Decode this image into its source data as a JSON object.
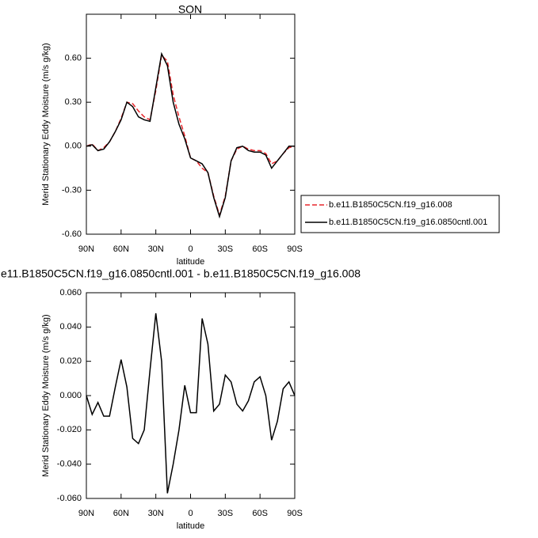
{
  "chart_data": [
    {
      "type": "line",
      "title": "SON",
      "xlabel": "latitude",
      "ylabel": "Merid Stationary Eddy Moisture (m/s g/kg)",
      "x": [
        90,
        85,
        80,
        75,
        70,
        65,
        60,
        55,
        50,
        45,
        40,
        35,
        30,
        25,
        20,
        15,
        10,
        5,
        0,
        -5,
        -10,
        -15,
        -20,
        -25,
        -30,
        -35,
        -40,
        -45,
        -50,
        -55,
        -60,
        -65,
        -70,
        -75,
        -80,
        -85,
        -90
      ],
      "series": [
        {
          "name": "b.e11.B1850C5CN.f19_g16.008",
          "color": "#e8262b",
          "dash": true,
          "values": [
            0.0,
            0.015,
            -0.03,
            -0.01,
            0.03,
            0.1,
            0.19,
            0.3,
            0.29,
            0.24,
            0.2,
            0.18,
            0.38,
            0.62,
            0.58,
            0.35,
            0.2,
            0.07,
            -0.08,
            -0.1,
            -0.15,
            -0.18,
            -0.34,
            -0.47,
            -0.34,
            -0.1,
            -0.02,
            0.0,
            -0.02,
            -0.03,
            -0.03,
            -0.05,
            -0.12,
            -0.1,
            -0.05,
            -0.01,
            0.0
          ]
        },
        {
          "name": "b.e11.B1850C5CN.f19_g16.0850cntl.001",
          "color": "#000000",
          "dash": false,
          "values": [
            0.0,
            0.01,
            -0.03,
            -0.02,
            0.03,
            0.1,
            0.18,
            0.3,
            0.27,
            0.2,
            0.18,
            0.17,
            0.4,
            0.63,
            0.55,
            0.3,
            0.15,
            0.05,
            -0.08,
            -0.1,
            -0.12,
            -0.18,
            -0.35,
            -0.48,
            -0.35,
            -0.1,
            -0.01,
            0.0,
            -0.03,
            -0.04,
            -0.04,
            -0.06,
            -0.15,
            -0.1,
            -0.05,
            0.0,
            0.0
          ]
        }
      ],
      "xlim": [
        90,
        -90
      ],
      "xticks": [
        {
          "value": 90,
          "label": "90N"
        },
        {
          "value": 60,
          "label": "60N"
        },
        {
          "value": 30,
          "label": "30N"
        },
        0,
        {
          "value": -30,
          "label": "30S"
        },
        {
          "value": -60,
          "label": "60S"
        },
        {
          "value": -90,
          "label": "90S"
        }
      ],
      "ylim": [
        -0.6,
        0.9
      ],
      "yticks": [
        {
          "value": -0.6,
          "label": "-0.60"
        },
        {
          "value": -0.3,
          "label": "-0.30"
        },
        {
          "value": 0,
          "label": "0.00"
        },
        {
          "value": 0.3,
          "label": "0.30"
        },
        {
          "value": 0.6,
          "label": "0.60"
        }
      ],
      "legend": "right"
    },
    {
      "type": "line",
      "title": "e11.B1850C5CN.f19_g16.0850cntl.001 - b.e11.B1850C5CN.f19_g16.008",
      "xlabel": "latitude",
      "ylabel": "Merid Stationary Eddy Moisture (m/s g/kg)",
      "x": [
        90,
        85,
        80,
        75,
        70,
        65,
        60,
        55,
        50,
        45,
        40,
        35,
        30,
        25,
        20,
        15,
        10,
        5,
        0,
        -5,
        -10,
        -15,
        -20,
        -25,
        -30,
        -35,
        -40,
        -45,
        -50,
        -55,
        -60,
        -65,
        -70,
        -75,
        -80,
        -85,
        -90
      ],
      "series": [
        {
          "color": "#000000",
          "dash": false,
          "values": [
            0.0,
            -0.011,
            -0.004,
            -0.012,
            -0.012,
            0.005,
            0.021,
            0.005,
            -0.025,
            -0.028,
            -0.02,
            0.015,
            0.048,
            0.02,
            -0.057,
            -0.04,
            -0.02,
            0.006,
            -0.01,
            -0.01,
            0.045,
            0.03,
            -0.009,
            -0.005,
            0.012,
            0.008,
            -0.005,
            -0.009,
            -0.003,
            0.008,
            0.011,
            0.0,
            -0.026,
            -0.015,
            0.004,
            0.008,
            0.0
          ]
        }
      ],
      "xlim": [
        90,
        -90
      ],
      "xticks": [
        {
          "value": 90,
          "label": "90N"
        },
        {
          "value": 60,
          "label": "60N"
        },
        {
          "value": 30,
          "label": "30N"
        },
        0,
        {
          "value": -30,
          "label": "30S"
        },
        {
          "value": -60,
          "label": "60S"
        },
        {
          "value": -90,
          "label": "90S"
        }
      ],
      "ylim": [
        -0.06,
        0.06
      ],
      "yticks": [
        {
          "value": -0.06,
          "label": "-0.060"
        },
        {
          "value": -0.04,
          "label": "-0.040"
        },
        {
          "value": -0.02,
          "label": "-0.020"
        },
        {
          "value": 0,
          "label": "0.000"
        },
        {
          "value": 0.02,
          "label": "0.020"
        },
        {
          "value": 0.04,
          "label": "0.040"
        },
        {
          "value": 0.06,
          "label": "0.060"
        }
      ]
    }
  ]
}
